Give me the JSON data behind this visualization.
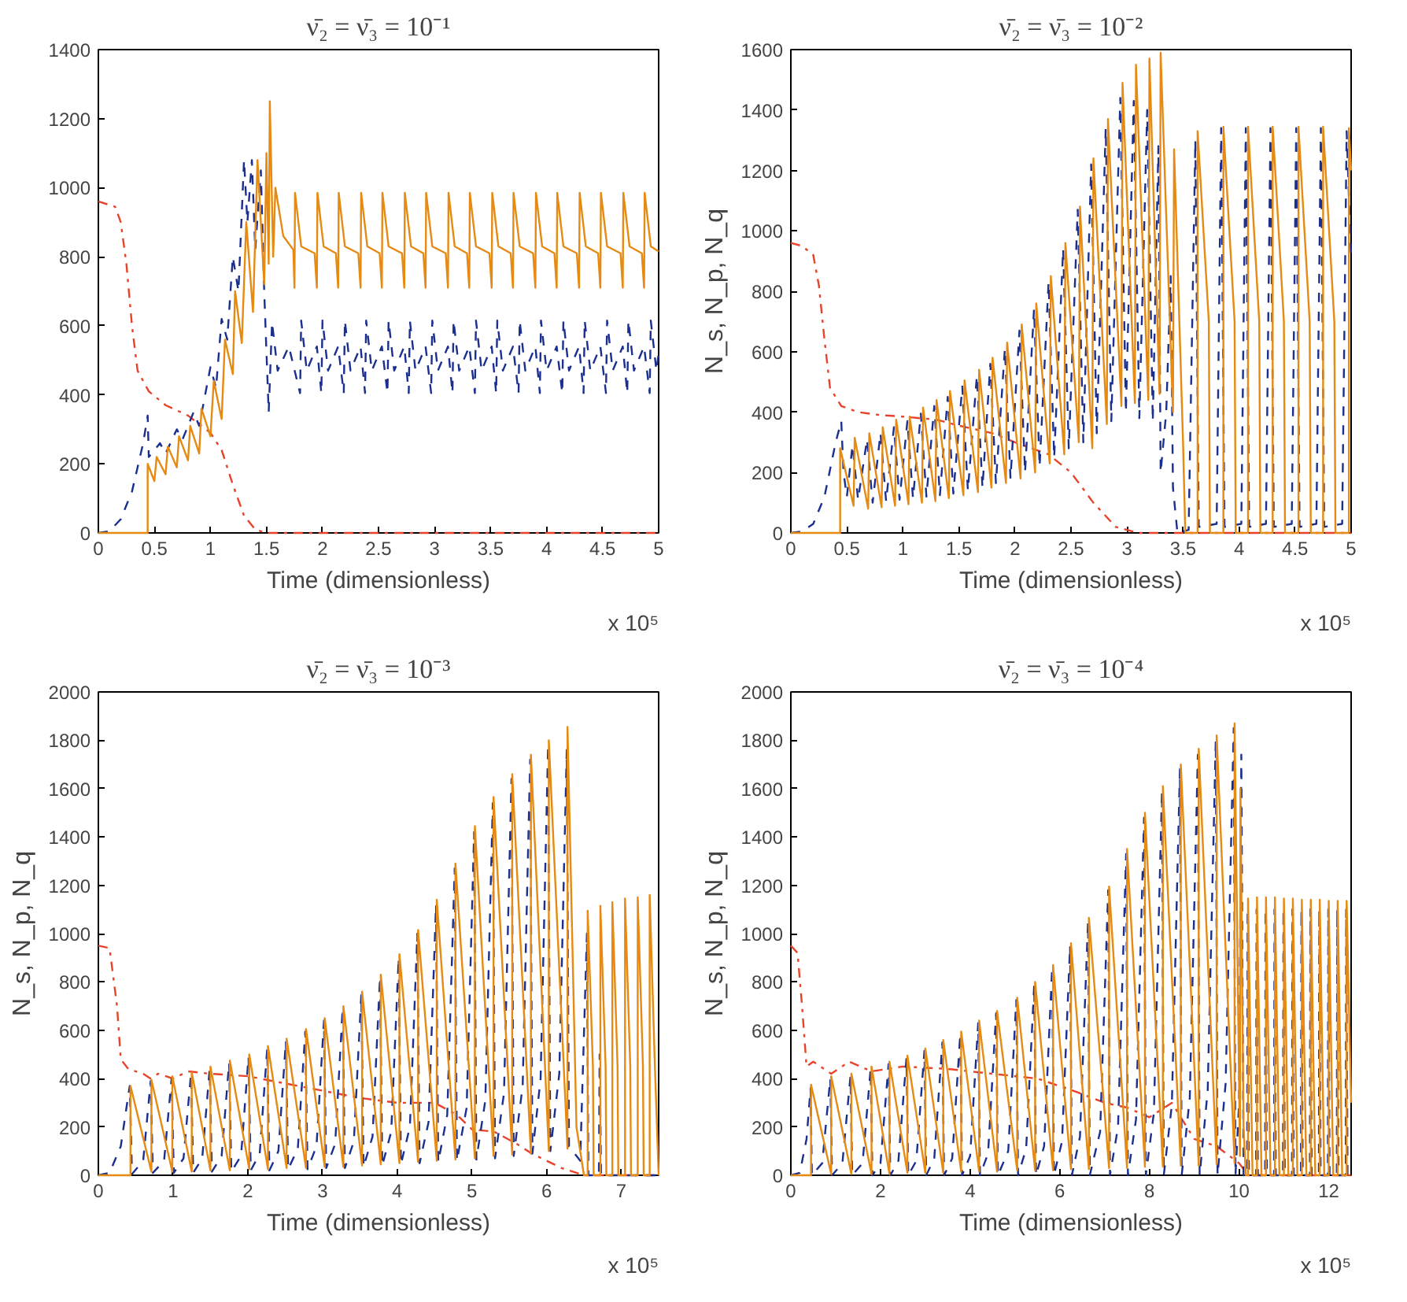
{
  "chart_data": [
    {
      "type": "line",
      "title": "ν̄₂ = ν̄₃ = 10⁻¹",
      "xlabel": "Time (dimensionless)",
      "annotations": [
        "x 10⁵"
      ],
      "xlim": [
        0,
        5
      ],
      "xticks": [
        0,
        0.5,
        1,
        1.5,
        2,
        2.5,
        3,
        3.5,
        4,
        4.5,
        5
      ],
      "ylim": [
        0,
        1400
      ],
      "yticks": [
        0,
        200,
        400,
        600,
        800,
        1000,
        1200,
        1400
      ],
      "series": [
        {
          "color": "#e8432a",
          "line_style": "dashdot",
          "x": [
            0,
            0.1,
            0.15,
            0.2,
            0.25,
            0.3,
            0.35,
            0.45,
            0.6,
            0.8,
            1.0,
            1.1,
            1.2,
            1.3,
            1.4,
            1.5,
            2,
            5
          ],
          "values": [
            960,
            950,
            945,
            900,
            780,
            600,
            470,
            410,
            370,
            340,
            290,
            240,
            140,
            50,
            10,
            0,
            0,
            0
          ]
        },
        {
          "color": "#1a2f8f",
          "line_style": "dashed",
          "x": [
            0,
            0.1,
            0.2,
            0.3,
            0.4,
            0.44,
            0.45,
            0.55,
            0.6,
            0.7,
            0.75,
            0.85,
            0.9,
            1.0,
            1.05,
            1.1,
            1.15,
            1.2,
            1.25,
            1.3,
            1.33,
            1.37,
            1.4,
            1.45,
            1.48,
            1.52,
            1.55,
            1.6,
            1.7,
            1.8,
            1.81,
            1.86,
            1.95,
            1.99,
            2.0,
            2.05,
            2.14,
            2.19,
            2.2,
            2.25,
            2.34,
            2.38,
            2.39,
            2.44,
            2.53,
            2.58,
            2.59,
            2.64,
            2.73,
            2.77,
            2.78,
            2.83,
            2.92,
            2.97,
            2.98,
            3.03,
            3.12,
            3.16,
            3.17,
            3.22,
            3.31,
            3.36,
            3.37,
            3.42,
            3.51,
            3.55,
            3.56,
            3.61,
            3.7,
            3.75,
            3.76,
            3.81,
            3.9,
            3.94,
            3.95,
            4.0,
            4.09,
            4.14,
            4.15,
            4.2,
            4.29,
            4.33,
            4.34,
            4.39,
            4.48,
            4.53,
            4.54,
            4.59,
            4.68,
            4.72,
            4.73,
            4.78,
            4.87,
            4.92,
            4.93,
            4.98,
            5.0
          ],
          "values": [
            0,
            5,
            40,
            120,
            260,
            340,
            220,
            260,
            230,
            300,
            270,
            350,
            310,
            480,
            420,
            620,
            560,
            800,
            700,
            1080,
            900,
            1080,
            820,
            1050,
            700,
            350,
            610,
            470,
            540,
            405,
            615,
            470,
            540,
            405,
            615,
            470,
            540,
            405,
            615,
            470,
            540,
            405,
            615,
            470,
            540,
            405,
            615,
            470,
            540,
            405,
            615,
            470,
            540,
            405,
            615,
            470,
            540,
            405,
            615,
            470,
            540,
            405,
            615,
            470,
            540,
            405,
            615,
            470,
            540,
            405,
            615,
            470,
            540,
            405,
            615,
            470,
            540,
            405,
            615,
            470,
            540,
            405,
            615,
            470,
            540,
            405,
            615,
            470,
            540,
            405,
            615,
            470,
            540,
            405,
            615,
            470,
            520
          ]
        },
        {
          "color": "#e58a12",
          "line_style": "solid",
          "x": [
            0,
            0.44,
            0.44,
            0.5,
            0.52,
            0.6,
            0.62,
            0.7,
            0.72,
            0.8,
            0.82,
            0.9,
            0.92,
            1.0,
            1.03,
            1.1,
            1.13,
            1.2,
            1.22,
            1.28,
            1.32,
            1.38,
            1.42,
            1.48,
            1.5,
            1.52,
            1.53,
            1.56,
            1.58,
            1.65,
            1.74,
            1.75,
            1.755,
            1.81,
            1.93,
            1.95,
            1.955,
            2.01,
            2.12,
            2.14,
            2.145,
            2.2,
            2.32,
            2.34,
            2.345,
            2.4,
            2.51,
            2.53,
            2.535,
            2.59,
            2.71,
            2.73,
            2.735,
            2.79,
            2.9,
            2.92,
            2.925,
            2.98,
            3.1,
            3.12,
            3.125,
            3.18,
            3.29,
            3.31,
            3.315,
            3.37,
            3.49,
            3.51,
            3.515,
            3.57,
            3.68,
            3.7,
            3.705,
            3.76,
            3.88,
            3.9,
            3.905,
            3.96,
            4.07,
            4.09,
            4.095,
            4.15,
            4.27,
            4.29,
            4.295,
            4.35,
            4.46,
            4.48,
            4.485,
            4.54,
            4.66,
            4.68,
            4.685,
            4.74,
            4.85,
            4.87,
            4.875,
            4.93,
            5.0
          ],
          "values": [
            0,
            0,
            200,
            150,
            220,
            170,
            250,
            190,
            280,
            210,
            310,
            230,
            360,
            280,
            440,
            330,
            560,
            460,
            700,
            550,
            900,
            640,
            1080,
            720,
            1100,
            780,
            1250,
            800,
            1000,
            860,
            820,
            710,
            985,
            830,
            810,
            710,
            985,
            830,
            810,
            710,
            985,
            830,
            810,
            710,
            985,
            830,
            810,
            710,
            985,
            830,
            810,
            710,
            985,
            830,
            810,
            710,
            985,
            830,
            810,
            710,
            985,
            830,
            810,
            710,
            985,
            830,
            810,
            710,
            985,
            830,
            810,
            710,
            985,
            830,
            810,
            710,
            985,
            830,
            810,
            710,
            985,
            830,
            810,
            710,
            985,
            830,
            810,
            710,
            985,
            830,
            810,
            710,
            985,
            830,
            810,
            710,
            985,
            830,
            815
          ]
        }
      ]
    },
    {
      "type": "line",
      "title": "ν̄₂ = ν̄₃ = 10⁻²",
      "xlabel": "Time (dimensionless)",
      "ylabel": "N_s, N_p, N_q",
      "annotations": [
        "x 10⁵"
      ],
      "xlim": [
        0,
        5
      ],
      "xticks": [
        0,
        0.5,
        1,
        1.5,
        2,
        2.5,
        3,
        3.5,
        4,
        4.5,
        5
      ],
      "ylim": [
        0,
        1600
      ],
      "yticks": [
        0,
        200,
        400,
        600,
        800,
        1000,
        1200,
        1400,
        1600
      ],
      "series": [
        {
          "color": "#e8432a",
          "line_style": "dashdot",
          "x": [
            0,
            0.1,
            0.2,
            0.25,
            0.3,
            0.35,
            0.45,
            0.6,
            0.8,
            1.0,
            1.3,
            1.5,
            1.8,
            2.0,
            2.3,
            2.5,
            2.7,
            2.9,
            3.1,
            5
          ],
          "values": [
            960,
            950,
            920,
            820,
            640,
            480,
            420,
            400,
            390,
            385,
            375,
            355,
            330,
            300,
            260,
            200,
            100,
            20,
            0,
            0
          ]
        },
        {
          "color": "#1a2f8f",
          "line_style": "dashed",
          "x": [
            0,
            0.1,
            0.2,
            0.3,
            0.4,
            0.45,
            0.47,
            0.5,
            0.55,
            0.6,
            0.68,
            0.73,
            0.8,
            0.85,
            0.92,
            0.97,
            1.04,
            1.09,
            1.16,
            1.21,
            1.28,
            1.33,
            1.4,
            1.45,
            1.53,
            1.58,
            1.66,
            1.71,
            1.78,
            1.83,
            1.91,
            1.96,
            2.04,
            2.09,
            2.17,
            2.22,
            2.3,
            2.35,
            2.43,
            2.48,
            2.56,
            2.61,
            2.68,
            2.73,
            2.81,
            2.86,
            2.94,
            2.99,
            3.06,
            3.11,
            3.18,
            3.23,
            3.28,
            3.3,
            3.35,
            3.39,
            3.41,
            3.45,
            3.55,
            3.61,
            3.64,
            3.8,
            3.84,
            3.87,
            4.02,
            4.06,
            4.09,
            4.24,
            4.28,
            4.31,
            4.47,
            4.51,
            4.54,
            4.69,
            4.73,
            4.76,
            4.92,
            4.96,
            5.0
          ],
          "values": [
            0,
            5,
            30,
            120,
            300,
            370,
            200,
            120,
            290,
            110,
            310,
            100,
            330,
            105,
            350,
            110,
            370,
            115,
            395,
            120,
            420,
            125,
            450,
            130,
            485,
            140,
            520,
            150,
            560,
            165,
            610,
            180,
            670,
            200,
            740,
            220,
            830,
            250,
            940,
            280,
            1070,
            300,
            1220,
            330,
            1340,
            370,
            1440,
            400,
            1430,
            380,
            1400,
            370,
            1280,
            200,
            400,
            850,
            150,
            0,
            10,
            1300,
            20,
            30,
            1340,
            20,
            30,
            1340,
            20,
            30,
            1340,
            20,
            30,
            1340,
            20,
            30,
            1340,
            20,
            30,
            1330,
            900
          ]
        },
        {
          "color": "#e58a12",
          "line_style": "solid",
          "x": [
            0,
            0.44,
            0.44,
            0.56,
            0.57,
            0.69,
            0.7,
            0.81,
            0.82,
            0.93,
            0.94,
            1.05,
            1.06,
            1.17,
            1.18,
            1.29,
            1.3,
            1.41,
            1.42,
            1.54,
            1.55,
            1.67,
            1.68,
            1.79,
            1.8,
            1.92,
            1.93,
            2.05,
            2.06,
            2.18,
            2.19,
            2.31,
            2.32,
            2.44,
            2.45,
            2.57,
            2.58,
            2.69,
            2.7,
            2.82,
            2.83,
            2.95,
            2.96,
            3.07,
            3.08,
            3.19,
            3.2,
            3.29,
            3.3,
            3.41,
            3.42,
            3.5,
            3.52,
            3.63,
            3.63,
            3.73,
            3.74,
            3.86,
            3.86,
            3.96,
            3.97,
            4.08,
            4.08,
            4.18,
            4.19,
            4.3,
            4.3,
            4.4,
            4.41,
            4.53,
            4.53,
            4.63,
            4.64,
            4.75,
            4.75,
            4.85,
            4.86,
            4.98,
            4.98,
            5.0
          ],
          "values": [
            0,
            0,
            280,
            90,
            315,
            80,
            330,
            85,
            350,
            90,
            375,
            95,
            385,
            100,
            415,
            105,
            440,
            115,
            470,
            125,
            505,
            135,
            540,
            150,
            580,
            165,
            630,
            180,
            690,
            200,
            760,
            230,
            850,
            260,
            960,
            300,
            1080,
            280,
            1240,
            360,
            1370,
            420,
            1490,
            430,
            1550,
            440,
            1570,
            460,
            1590,
            400,
            1270,
            300,
            0,
            0,
            1330,
            700,
            0,
            0,
            1345,
            700,
            0,
            0,
            1345,
            700,
            0,
            0,
            1345,
            700,
            0,
            0,
            1345,
            700,
            0,
            0,
            1345,
            700,
            0,
            0,
            1340,
            1200
          ]
        }
      ]
    },
    {
      "type": "line",
      "title": "ν̄₂ = ν̄₃ = 10⁻³",
      "xlabel": "Time (dimensionless)",
      "ylabel": "N_s, N_p, N_q",
      "annotations": [
        "x 10⁵"
      ],
      "xlim": [
        0,
        7.5
      ],
      "xticks": [
        0,
        1,
        2,
        3,
        4,
        5,
        6,
        7
      ],
      "ylim": [
        0,
        2000
      ],
      "yticks": [
        0,
        200,
        400,
        600,
        800,
        1000,
        1200,
        1400,
        1600,
        1800,
        2000
      ],
      "series": [
        {
          "color": "#e8432a",
          "line_style": "dashdot",
          "x": [
            0,
            0.15,
            0.25,
            0.3,
            0.4,
            0.6,
            0.7,
            0.8,
            1.0,
            1.2,
            1.5,
            2,
            2.5,
            3,
            3.5,
            4,
            4.5,
            4.8,
            5,
            5.3,
            5.6,
            5.8,
            6,
            6.2,
            6.5,
            7.5
          ],
          "values": [
            950,
            940,
            700,
            480,
            440,
            420,
            400,
            420,
            400,
            430,
            420,
            410,
            380,
            350,
            320,
            300,
            300,
            250,
            190,
            180,
            130,
            90,
            60,
            30,
            0,
            0
          ]
        },
        {
          "color": "#1a2f8f",
          "line_style": "dashed",
          "x": [
            0,
            0.15,
            0.3,
            0.4,
            0.42,
            0.45,
            0.6,
            0.7,
            0.73,
            0.88,
            0.98,
            1.01,
            1.14,
            1.24,
            1.27,
            1.39,
            1.49,
            1.52,
            1.65,
            1.75,
            1.78,
            1.91,
            2.01,
            2.04,
            2.16,
            2.26,
            2.29,
            2.41,
            2.51,
            2.54,
            2.67,
            2.77,
            2.8,
            2.92,
            3.02,
            3.05,
            3.17,
            3.27,
            3.3,
            3.42,
            3.52,
            3.55,
            3.67,
            3.77,
            3.8,
            3.92,
            4.02,
            4.05,
            4.17,
            4.27,
            4.3,
            4.42,
            4.52,
            4.55,
            4.67,
            4.77,
            4.8,
            4.93,
            5.03,
            5.06,
            5.18,
            5.28,
            5.31,
            5.43,
            5.53,
            5.56,
            5.68,
            5.78,
            5.81,
            5.92,
            6.02,
            6.05,
            6.17,
            6.27,
            6.3,
            6.45,
            6.54,
            6.56,
            6.7,
            6.71,
            6.73,
            7.5
          ],
          "values": [
            0,
            10,
            120,
            330,
            370,
            5,
            60,
            390,
            10,
            60,
            400,
            10,
            70,
            420,
            10,
            70,
            440,
            15,
            80,
            465,
            15,
            80,
            490,
            20,
            90,
            525,
            20,
            100,
            555,
            25,
            110,
            595,
            25,
            120,
            640,
            30,
            130,
            690,
            30,
            140,
            750,
            35,
            160,
            820,
            40,
            180,
            900,
            45,
            200,
            1000,
            50,
            220,
            1120,
            55,
            250,
            1270,
            60,
            280,
            1420,
            65,
            310,
            1540,
            70,
            340,
            1640,
            80,
            370,
            1720,
            90,
            400,
            1780,
            100,
            420,
            1760,
            120,
            60,
            1000,
            0,
            0,
            500,
            0,
            0
          ]
        },
        {
          "color": "#e58a12",
          "line_style": "solid",
          "x": [
            0,
            0.43,
            0.43,
            0.71,
            0.71,
            0.99,
            0.99,
            1.25,
            1.25,
            1.5,
            1.5,
            1.76,
            1.76,
            2.02,
            2.02,
            2.27,
            2.27,
            2.52,
            2.52,
            2.78,
            2.78,
            3.03,
            3.03,
            3.28,
            3.28,
            3.53,
            3.53,
            3.78,
            3.78,
            4.03,
            4.03,
            4.28,
            4.28,
            4.53,
            4.53,
            4.78,
            4.78,
            5.04,
            5.04,
            5.29,
            5.29,
            5.54,
            5.54,
            5.79,
            5.79,
            6.03,
            6.03,
            6.28,
            6.28,
            6.4,
            6.5,
            6.55,
            6.55,
            6.62,
            6.63,
            6.72,
            6.72,
            6.79,
            6.8,
            6.88,
            6.88,
            6.95,
            6.96,
            7.05,
            7.05,
            7.12,
            7.13,
            7.22,
            7.22,
            7.29,
            7.3,
            7.38,
            7.38,
            7.45,
            7.5
          ],
          "values": [
            0,
            0,
            370,
            15,
            395,
            15,
            410,
            15,
            425,
            20,
            450,
            20,
            475,
            25,
            500,
            25,
            535,
            30,
            565,
            30,
            605,
            35,
            650,
            35,
            700,
            40,
            760,
            45,
            830,
            50,
            915,
            55,
            1015,
            60,
            1140,
            65,
            1290,
            70,
            1445,
            80,
            1565,
            85,
            1660,
            90,
            1740,
            100,
            1800,
            110,
            1855,
            200,
            0,
            0,
            1095,
            450,
            0,
            0,
            1115,
            450,
            0,
            0,
            1130,
            450,
            0,
            0,
            1145,
            450,
            0,
            0,
            1150,
            450,
            0,
            0,
            1160,
            450,
            0
          ]
        }
      ]
    },
    {
      "type": "line",
      "title": "ν̄₂ = ν̄₃ = 10⁻⁴",
      "xlabel": "Time (dimensionless)",
      "ylabel": "N_s, N_p, N_q",
      "annotations": [
        "x 10⁵"
      ],
      "xlim": [
        0,
        12.5
      ],
      "xticks": [
        0,
        2,
        4,
        6,
        8,
        10,
        12
      ],
      "ylim": [
        0,
        2000
      ],
      "yticks": [
        0,
        200,
        400,
        600,
        800,
        1000,
        1200,
        1400,
        1600,
        1800,
        2000
      ],
      "series": [
        {
          "color": "#e8432a",
          "line_style": "dashdot",
          "x": [
            0,
            0.15,
            0.25,
            0.35,
            0.5,
            0.9,
            1.3,
            1.8,
            2.5,
            3.5,
            4.5,
            5.5,
            6.3,
            7,
            7.5,
            8,
            8.5,
            9,
            9.5,
            10,
            10.2,
            12.5
          ],
          "values": [
            950,
            920,
            700,
            450,
            470,
            420,
            470,
            430,
            450,
            440,
            420,
            400,
            350,
            300,
            280,
            240,
            300,
            150,
            120,
            50,
            0,
            0
          ]
        },
        {
          "color": "#1a2f8f",
          "line_style": "dashed",
          "x": [
            0,
            0.2,
            0.35,
            0.44,
            0.47,
            0.7,
            0.88,
            0.92,
            1.15,
            1.33,
            1.37,
            1.6,
            1.78,
            1.82,
            2.0,
            2.18,
            2.22,
            2.4,
            2.58,
            2.62,
            2.8,
            2.98,
            3.02,
            3.2,
            3.38,
            3.42,
            3.6,
            3.78,
            3.82,
            4.0,
            4.18,
            4.22,
            4.4,
            4.58,
            4.62,
            4.85,
            5.03,
            5.07,
            5.25,
            5.43,
            5.47,
            5.65,
            5.83,
            5.87,
            6.05,
            6.23,
            6.27,
            6.45,
            6.63,
            6.67,
            6.9,
            7.08,
            7.12,
            7.3,
            7.48,
            7.52,
            7.7,
            7.88,
            7.92,
            8.1,
            8.28,
            8.32,
            8.5,
            8.68,
            8.72,
            8.9,
            9.08,
            9.12,
            9.3,
            9.48,
            9.52,
            9.7,
            9.88,
            9.92,
            10.0,
            10.05,
            10.1,
            10.18,
            10.19,
            10.22,
            10.38,
            10.39,
            10.42,
            10.58,
            10.59,
            10.62,
            10.78,
            10.79,
            10.82,
            10.98,
            10.99,
            11.02,
            11.18,
            11.19,
            11.22,
            11.38,
            11.39,
            11.42,
            11.58,
            11.59,
            11.62,
            11.78,
            11.79,
            11.82,
            11.98,
            11.99,
            12.02,
            12.18,
            12.19,
            12.22,
            12.38,
            12.39,
            12.42,
            12.5
          ],
          "values": [
            0,
            10,
            150,
            360,
            0,
            50,
            400,
            0,
            50,
            410,
            0,
            50,
            440,
            0,
            50,
            460,
            0,
            60,
            485,
            0,
            60,
            515,
            0,
            70,
            550,
            0,
            70,
            585,
            0,
            80,
            630,
            0,
            90,
            670,
            0,
            100,
            725,
            0,
            110,
            790,
            0,
            120,
            860,
            0,
            140,
            950,
            0,
            160,
            1050,
            0,
            180,
            1180,
            0,
            200,
            1330,
            0,
            230,
            1480,
            0,
            260,
            1590,
            0,
            290,
            1680,
            0,
            320,
            1740,
            0,
            350,
            1800,
            0,
            380,
            1850,
            0,
            300,
            1740,
            0,
            0,
            1100,
            0,
            0,
            1100,
            0,
            0,
            1100,
            0,
            0,
            1100,
            0,
            0,
            1100,
            0,
            0,
            1100,
            0,
            0,
            1100,
            0,
            0,
            1100,
            0,
            0,
            1100,
            0,
            0,
            1100,
            0,
            0,
            1100,
            0,
            0,
            1100,
            0,
            0
          ]
        },
        {
          "color": "#e58a12",
          "line_style": "solid",
          "x": [
            0,
            0.45,
            0.45,
            0.9,
            0.9,
            1.35,
            1.35,
            1.8,
            1.8,
            2.2,
            2.2,
            2.6,
            2.6,
            3.0,
            3.0,
            3.4,
            3.4,
            3.8,
            3.8,
            4.2,
            4.2,
            4.6,
            4.6,
            5.05,
            5.05,
            5.45,
            5.45,
            5.85,
            5.85,
            6.25,
            6.25,
            6.65,
            6.65,
            7.1,
            7.1,
            7.5,
            7.5,
            7.9,
            7.9,
            8.3,
            8.3,
            8.7,
            8.7,
            9.1,
            9.1,
            9.5,
            9.5,
            9.9,
            9.9,
            10.02,
            10.03,
            10.1,
            10.15,
            10.2,
            10.2,
            10.3,
            10.4,
            10.4,
            10.5,
            10.6,
            10.6,
            10.7,
            10.8,
            10.8,
            10.9,
            11.0,
            11.0,
            11.1,
            11.2,
            11.2,
            11.3,
            11.4,
            11.4,
            11.5,
            11.6,
            11.6,
            11.7,
            11.8,
            11.8,
            11.9,
            12.0,
            12.0,
            12.1,
            12.2,
            12.2,
            12.3,
            12.4,
            12.4,
            12.5
          ],
          "values": [
            0,
            0,
            375,
            5,
            410,
            5,
            420,
            5,
            450,
            5,
            470,
            10,
            495,
            10,
            525,
            10,
            560,
            15,
            595,
            15,
            640,
            15,
            680,
            20,
            735,
            20,
            800,
            20,
            870,
            25,
            960,
            25,
            1065,
            30,
            1195,
            30,
            1350,
            35,
            1500,
            35,
            1610,
            40,
            1700,
            40,
            1765,
            45,
            1820,
            50,
            1870,
            80,
            1600,
            200,
            0,
            0,
            1145,
            0,
            0,
            1150,
            0,
            0,
            1150,
            0,
            0,
            1150,
            0,
            0,
            1145,
            0,
            0,
            1145,
            0,
            0,
            1140,
            0,
            0,
            1140,
            0,
            0,
            1140,
            0,
            0,
            1135,
            0,
            0,
            1135,
            0,
            0,
            1135,
            300
          ]
        }
      ]
    }
  ]
}
